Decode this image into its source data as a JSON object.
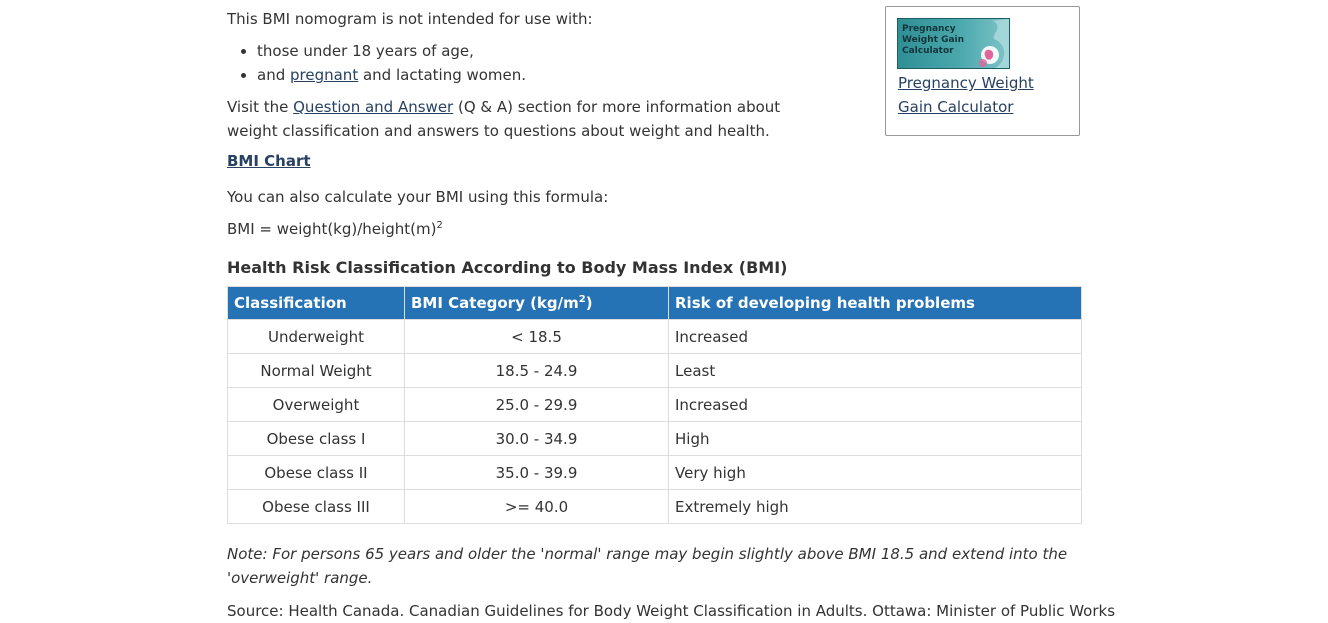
{
  "intro": {
    "text": "This BMI nomogram is not intended for use with:",
    "list": [
      {
        "text": "those under 18 years of age,"
      },
      {
        "prefix": "and ",
        "link": "pregnant",
        "suffix": " and lactating women."
      }
    ]
  },
  "visit": {
    "prefix": "Visit the ",
    "link": "Question and Answer",
    "suffix": " (Q & A) section for more information about weight classification and answers to questions about weight and health."
  },
  "bmi_chart_link": "BMI Chart",
  "calc_text": "You can also calculate your BMI using this formula:",
  "formula": {
    "text": "BMI = weight(kg)/height(m)",
    "sup": "2"
  },
  "table": {
    "title": "Health Risk Classification According to Body Mass Index (BMI)",
    "headers": {
      "classification": "Classification",
      "category": "BMI Category (kg/m",
      "category_sup": "2",
      "category_close": ")",
      "risk": "Risk of developing health problems"
    },
    "rows": [
      {
        "classification": "Underweight",
        "category": "< 18.5",
        "risk": "Increased"
      },
      {
        "classification": "Normal Weight",
        "category": "18.5 - 24.9",
        "risk": "Least"
      },
      {
        "classification": "Overweight",
        "category": "25.0 - 29.9",
        "risk": "Increased"
      },
      {
        "classification": "Obese class I",
        "category": "30.0 - 34.9",
        "risk": "High"
      },
      {
        "classification": "Obese class II",
        "category": "35.0 - 39.9",
        "risk": "Very high"
      },
      {
        "classification": "Obese class III",
        "category": ">= 40.0",
        "risk": "Extremely high"
      }
    ]
  },
  "note": "Note: For persons 65 years and older the 'normal' range may begin slightly above BMI 18.5 and extend into the 'overweight' range.",
  "source": "Source: Health Canada. Canadian Guidelines for Body Weight Classification in Adults. Ottawa: Minister of Public Works",
  "sidebar": {
    "thumb_text": "Pregnancy Weight Gain Calculator",
    "link": "Pregnancy Weight Gain Calculator",
    "icon": "pregnancy-silhouette-icon"
  },
  "colors": {
    "header_bg": "#2572b4",
    "link": "#284162",
    "text": "#333333",
    "border": "#dddddd",
    "thumb_bg": "#2e8f94"
  }
}
